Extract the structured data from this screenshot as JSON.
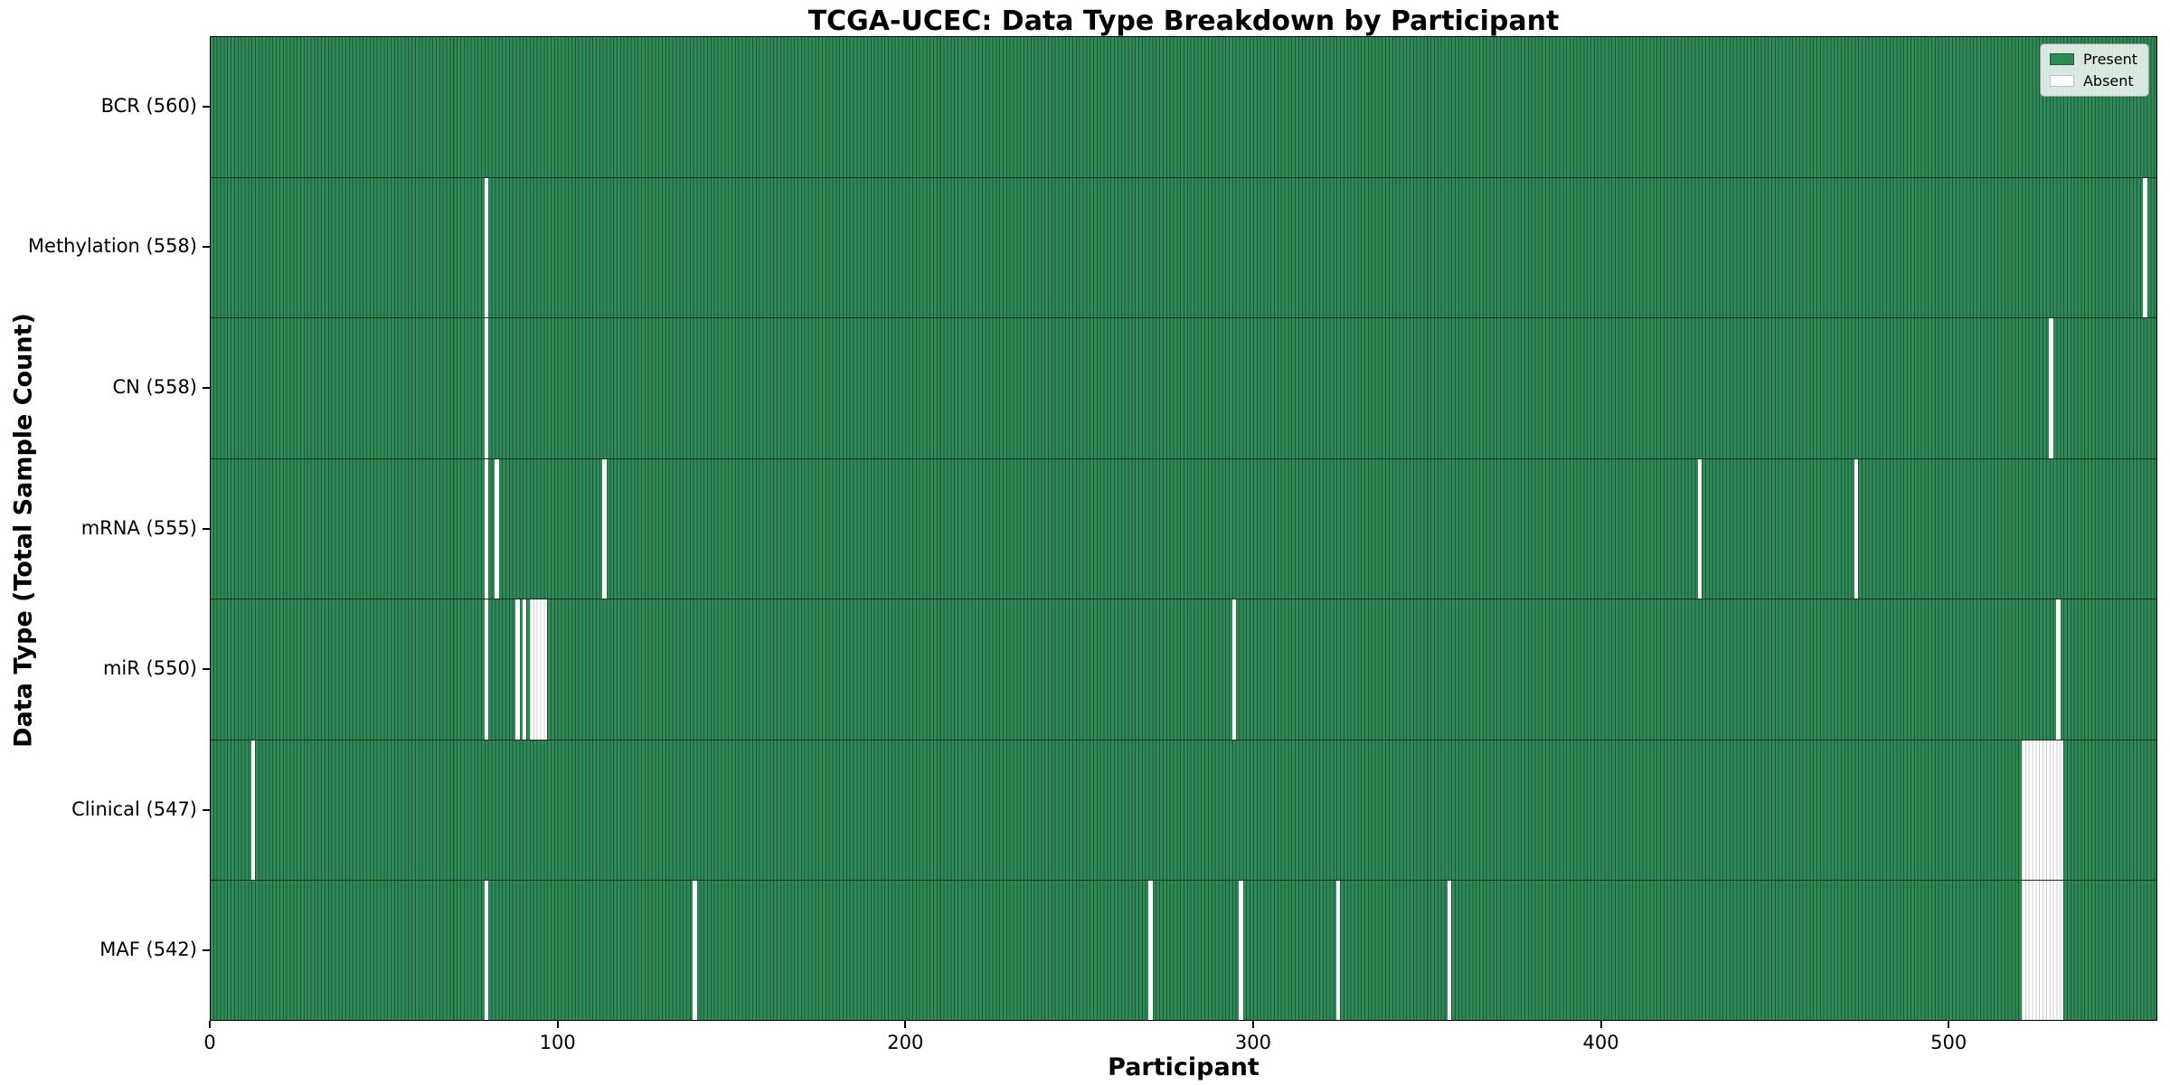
{
  "chart_data": {
    "type": "heatmap",
    "title": "TCGA-UCEC: Data Type Breakdown by Participant",
    "xlabel": "Participant",
    "ylabel": "Data Type (Total Sample Count)",
    "x_ticks": [
      0,
      100,
      200,
      300,
      400,
      500
    ],
    "x_max": 560,
    "grid": false,
    "legend_position": "upper right",
    "legend": [
      {
        "label": "Present",
        "color": "#2e8b57"
      },
      {
        "label": "Absent",
        "color": "#ffffff"
      }
    ],
    "present_color": "#2e8b57",
    "bar_edge_color": "#1f5737",
    "absent_color": "#ffffff",
    "absent_hatch_color": "#cfcfcf",
    "rows": [
      {
        "label": "BCR (560)",
        "data_type": "BCR",
        "total": 560,
        "absent_participants": []
      },
      {
        "label": "Methylation (558)",
        "data_type": "Methylation",
        "total": 558,
        "absent_participants": [
          79,
          556
        ]
      },
      {
        "label": "CN (558)",
        "data_type": "CN",
        "total": 558,
        "absent_participants": [
          79,
          529
        ]
      },
      {
        "label": "mRNA (555)",
        "data_type": "mRNA",
        "total": 555,
        "absent_participants": [
          79,
          82,
          113,
          428,
          473
        ]
      },
      {
        "label": "miR (550)",
        "data_type": "miR",
        "total": 550,
        "absent_participants": [
          79,
          88,
          90,
          92,
          93,
          94,
          95,
          96,
          294,
          531
        ]
      },
      {
        "label": "Clinical (547)",
        "data_type": "Clinical",
        "total": 547,
        "absent_participants": [
          12,
          521,
          522,
          523,
          524,
          525,
          526,
          527,
          528,
          529,
          530,
          531,
          532
        ]
      },
      {
        "label": "MAF (542)",
        "data_type": "MAF",
        "total": 542,
        "absent_participants": [
          79,
          139,
          270,
          296,
          324,
          356,
          521,
          522,
          523,
          524,
          525,
          526,
          527,
          528,
          529,
          530,
          531,
          532
        ]
      }
    ]
  }
}
